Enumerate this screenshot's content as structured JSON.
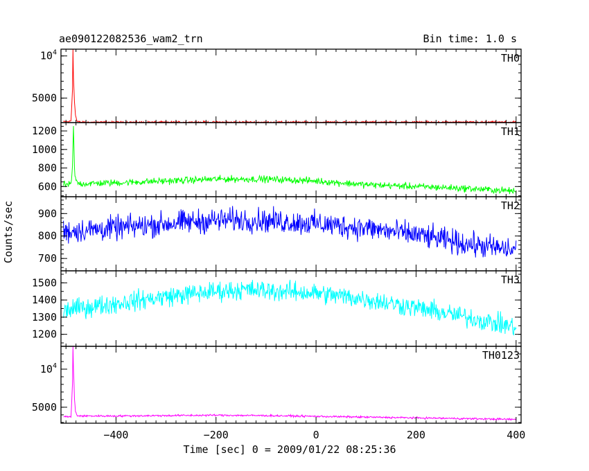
{
  "header": {
    "title": "ae090122082536_wam2_trn",
    "bin_time": "Bin time: 1.0 s"
  },
  "chart_data": {
    "type": "line",
    "title": "ae090122082536_wam2_trn",
    "xlabel": "Time [sec] 0 = 2009/01/22 08:25:36",
    "ylabel": "Counts/sec",
    "xlim": [
      -510,
      410
    ],
    "x_ticks": [
      -400,
      -200,
      0,
      200,
      400
    ],
    "x_tick_labels": [
      "−400",
      "−200",
      "0",
      "200",
      "400"
    ],
    "bin_time_s": 1.0,
    "grid": false,
    "legend": "none",
    "panels": [
      {
        "name": "TH0",
        "color": "#ff0000",
        "ylim": [
          2100,
          10800
        ],
        "y_ticks": [
          5000,
          10000
        ],
        "y_tick_labels": [
          "5000",
          "10^4"
        ],
        "x": [
          -505,
          -495,
          -490,
          -487,
          -486,
          -485,
          -484,
          -483,
          -481,
          -478,
          -470,
          -400,
          -300,
          -200,
          -100,
          0,
          100,
          200,
          300,
          400
        ],
        "y": [
          2200,
          2200,
          2300,
          6000,
          10800,
          7500,
          6000,
          4500,
          3000,
          2250,
          2150,
          2150,
          2150,
          2150,
          2150,
          2150,
          2150,
          2150,
          2150,
          2150
        ]
      },
      {
        "name": "TH1",
        "color": "#00ff00",
        "ylim": [
          490,
          1290
        ],
        "y_ticks": [
          600,
          800,
          1000,
          1200
        ],
        "y_tick_labels": [
          "600",
          "800",
          "1000",
          "1200"
        ],
        "x": [
          -505,
          -490,
          -487,
          -485,
          -484,
          -483,
          -481,
          -478,
          -470,
          -400,
          -300,
          -200,
          -100,
          0,
          100,
          200,
          300,
          400
        ],
        "y": [
          620,
          620,
          800,
          1250,
          1000,
          800,
          680,
          640,
          630,
          640,
          660,
          680,
          680,
          660,
          620,
          600,
          580,
          550
        ]
      },
      {
        "name": "TH2",
        "color": "#0000ff",
        "ylim": [
          645,
          975
        ],
        "y_ticks": [
          700,
          800,
          900
        ],
        "y_tick_labels": [
          "700",
          "800",
          "900"
        ],
        "x": [
          -505,
          -400,
          -300,
          -200,
          -150,
          -100,
          0,
          100,
          200,
          300,
          400
        ],
        "y": [
          820,
          835,
          855,
          870,
          872,
          868,
          855,
          835,
          805,
          765,
          735
        ]
      },
      {
        "name": "TH3",
        "color": "#00ffff",
        "ylim": [
          1130,
          1570
        ],
        "y_ticks": [
          1200,
          1300,
          1400,
          1500
        ],
        "y_tick_labels": [
          "1200",
          "1300",
          "1400",
          "1500"
        ],
        "x": [
          -505,
          -400,
          -300,
          -200,
          -150,
          -100,
          0,
          100,
          200,
          300,
          400
        ],
        "y": [
          1340,
          1380,
          1420,
          1450,
          1460,
          1455,
          1440,
          1405,
          1355,
          1300,
          1240
        ]
      },
      {
        "name": "TH0123",
        "color": "#ff00ff",
        "ylim": [
          2900,
          13000
        ],
        "y_ticks": [
          5000,
          10000
        ],
        "y_tick_labels": [
          "5000",
          "10^4"
        ],
        "x": [
          -505,
          -490,
          -487,
          -486,
          -485,
          -484,
          -483,
          -481,
          -478,
          -470,
          -400,
          -300,
          -200,
          -100,
          0,
          100,
          200,
          300,
          400
        ],
        "y": [
          3750,
          3750,
          8000,
          13000,
          10000,
          8200,
          6000,
          4500,
          3900,
          3850,
          3850,
          3900,
          3950,
          3900,
          3800,
          3700,
          3600,
          3500,
          3400
        ]
      }
    ]
  }
}
